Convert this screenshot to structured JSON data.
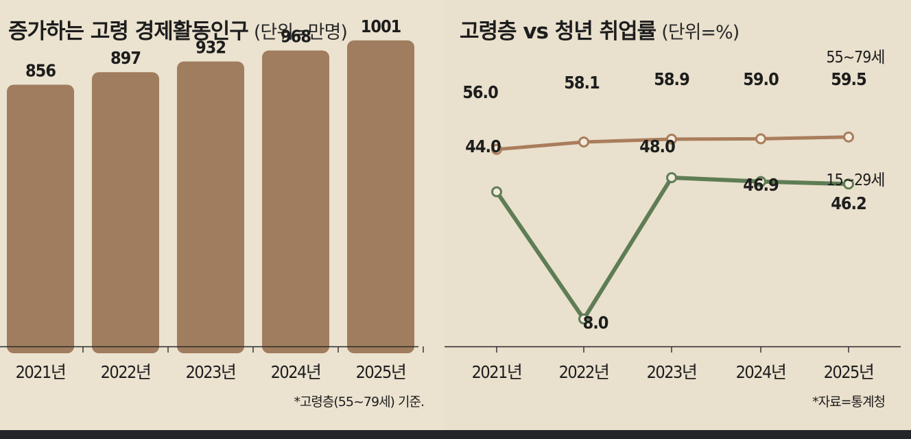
{
  "colors": {
    "bar": "#a07d5e",
    "older_line": "#a97d5c",
    "youth_line": "#5f7d55",
    "text": "#1d1d1d",
    "axis": "#2a2a2a"
  },
  "bar_chart": {
    "title": "증가하는 고령 경제활동인구",
    "unit": "(단위=만명)",
    "footnote": "*고령층(55~79세) 기준."
  },
  "line_chart": {
    "title": "고령층 vs 청년 취업률",
    "unit": "(단위=%)",
    "footnote": "*자료=통계청"
  },
  "chart_data": [
    {
      "type": "bar",
      "title": "증가하는 고령 경제활동인구",
      "unit": "(단위=만명)",
      "categories": [
        "2021년",
        "2022년",
        "2023년",
        "2024년",
        "2025년"
      ],
      "values": [
        856,
        897,
        932,
        968,
        1001
      ],
      "value_labels": [
        "856",
        "897",
        "932",
        "968",
        "1001"
      ],
      "ylim": [
        0,
        1040
      ],
      "grid": false
    },
    {
      "type": "line",
      "title": "고령층 vs 청년 취업률",
      "unit": "(단위=%)",
      "x": [
        "2021년",
        "2022년",
        "2023년",
        "2024년",
        "2025년"
      ],
      "series": [
        {
          "name": "55~79세",
          "values": [
            56.0,
            58.1,
            58.9,
            59.0,
            59.5
          ],
          "value_labels": [
            "56.0",
            "58.1",
            "58.9",
            "59.0",
            "59.5"
          ]
        },
        {
          "name": "15~29세",
          "values": [
            44.0,
            8.0,
            48.0,
            46.9,
            46.2
          ],
          "value_labels": [
            "44.0",
            "8.0",
            "48.0",
            "46.9",
            "46.2"
          ]
        }
      ],
      "grid": false
    }
  ]
}
